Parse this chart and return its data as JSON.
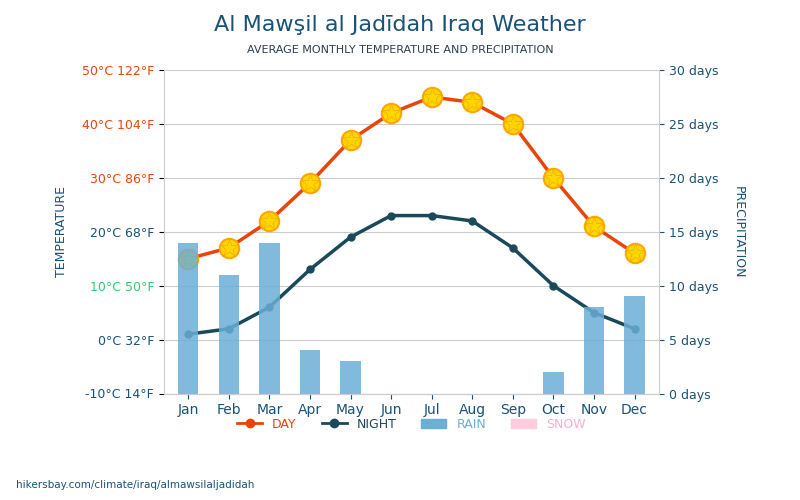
{
  "title": "Al Mawşil al Jadīdah Iraq Weather",
  "subtitle": "AVERAGE MONTHLY TEMPERATURE AND PRECIPITATION",
  "months": [
    "Jan",
    "Feb",
    "Mar",
    "Apr",
    "May",
    "Jun",
    "Jul",
    "Aug",
    "Sep",
    "Oct",
    "Nov",
    "Dec"
  ],
  "day_temps": [
    15,
    17,
    22,
    29,
    37,
    42,
    45,
    44,
    40,
    30,
    21,
    16
  ],
  "night_temps": [
    1,
    2,
    6,
    13,
    19,
    23,
    23,
    22,
    17,
    10,
    5,
    2
  ],
  "rain_days": [
    14,
    11,
    14,
    4,
    3,
    0,
    0,
    0,
    0,
    2,
    8,
    9
  ],
  "snow_days": [
    0,
    0,
    0,
    0,
    0,
    0,
    0,
    0,
    0,
    0,
    0,
    0
  ],
  "ylim_left": [
    -10,
    50
  ],
  "ylim_right": [
    0,
    30
  ],
  "yticks_left": [
    -10,
    0,
    10,
    20,
    30,
    40,
    50
  ],
  "ytick_labels_left": [
    "-10°C 14°F",
    "0°C 32°F",
    "10°C 50°F",
    "20°C 68°F",
    "30°C 86°F",
    "40°C 104°F",
    "50°C 122°F"
  ],
  "yticks_right": [
    0,
    5,
    10,
    15,
    20,
    25,
    30
  ],
  "ytick_labels_right": [
    "0 days",
    "5 days",
    "10 days",
    "15 days",
    "20 days",
    "25 days",
    "30 days"
  ],
  "day_color": "#e8450a",
  "night_color": "#1a4a5a",
  "rain_color": "#6baed6",
  "title_color": "#1a5276",
  "subtitle_color": "#2c3e50",
  "left_tick_color": "#e8450a",
  "right_tick_color": "#1a5276",
  "axis_label_color": "#1a5276",
  "footer": "hikersbay.com/climate/iraq/almawsilaljadidah",
  "background_color": "#ffffff"
}
